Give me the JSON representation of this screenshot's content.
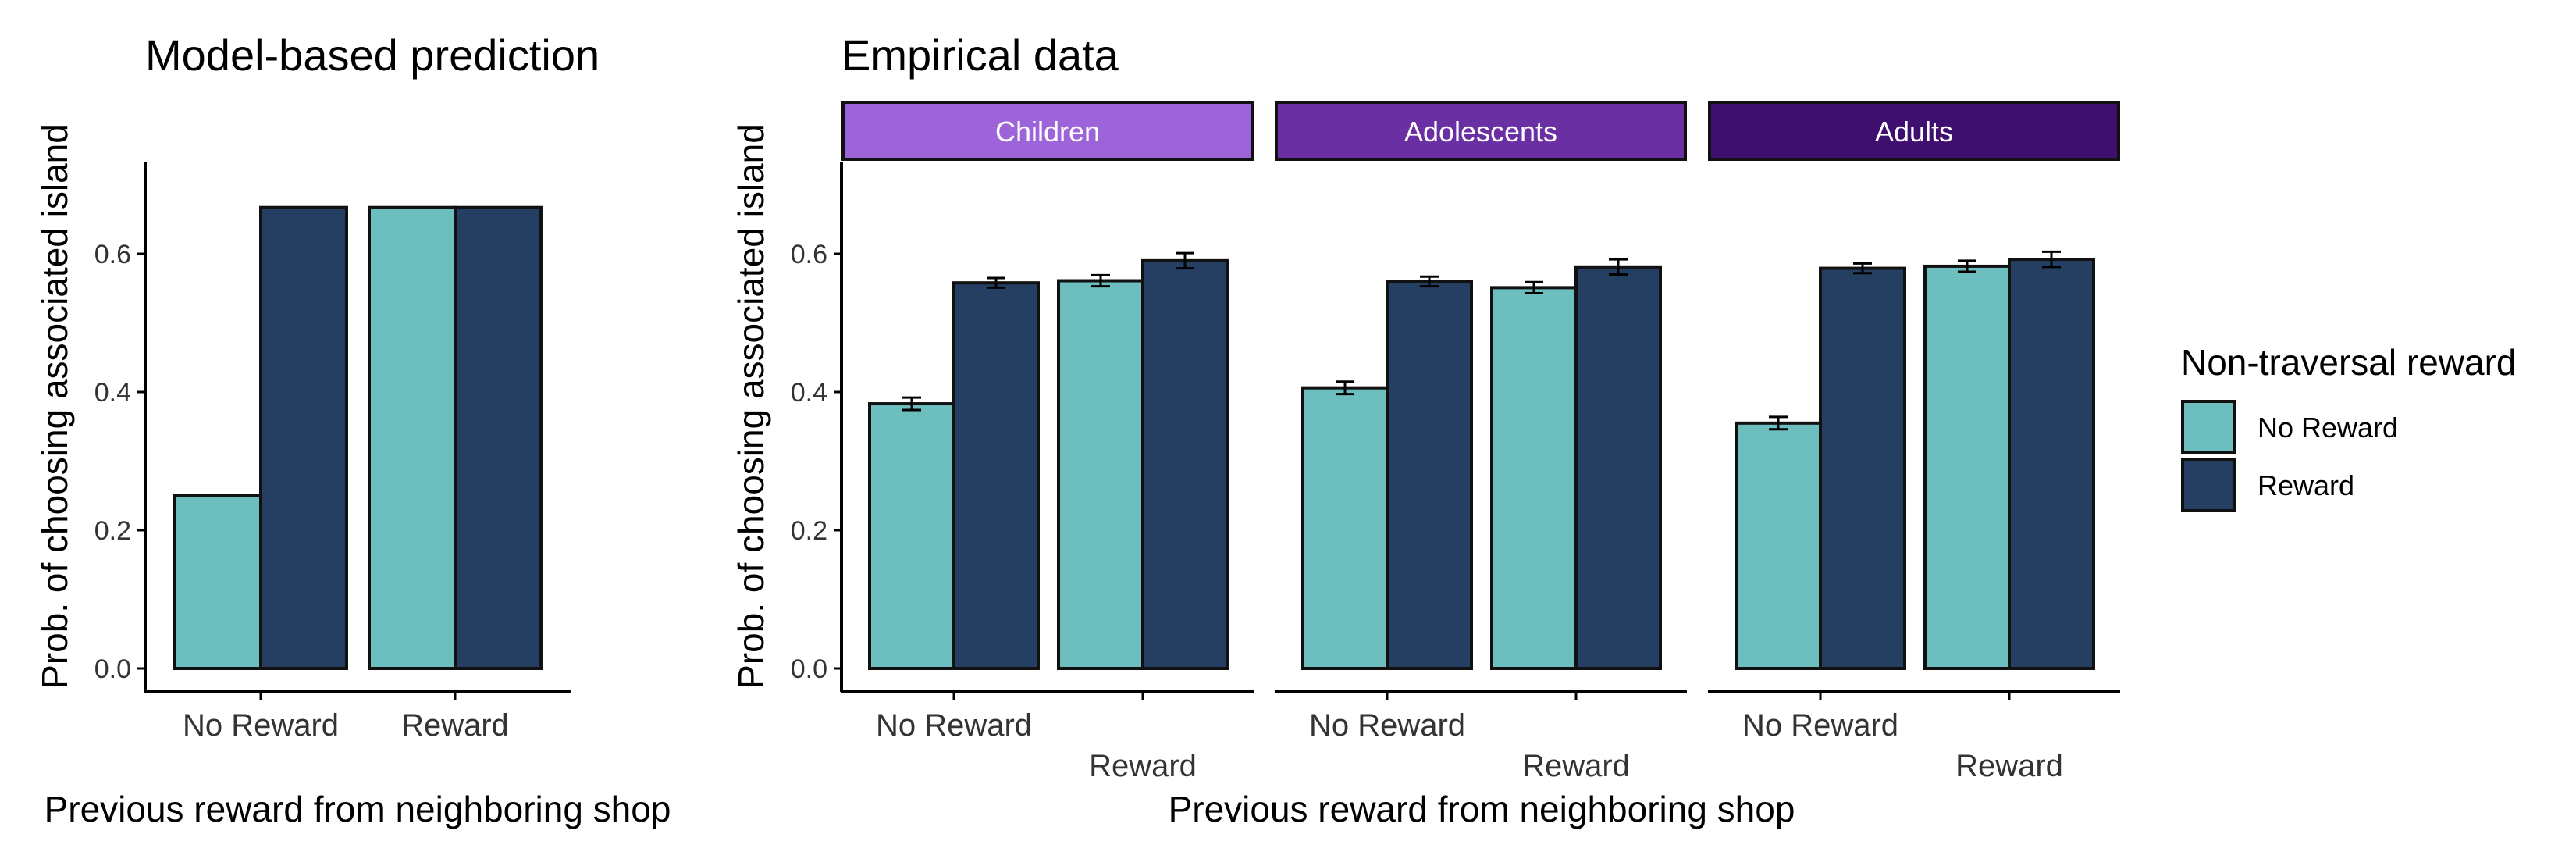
{
  "colors": {
    "no_reward": "#6dbfbf",
    "reward": "#253f63",
    "children": "#9d63d9",
    "adolescents": "#6a2fa2",
    "adults": "#3f0f6f",
    "bar_stroke": "#111111"
  },
  "legend": {
    "title": "Non-traversal reward",
    "items": [
      {
        "label": "No Reward",
        "color": "#6dbfbf"
      },
      {
        "label": "Reward",
        "color": "#253f63"
      }
    ]
  },
  "chart_data": [
    {
      "type": "bar",
      "title": "Model-based prediction",
      "xlabel": "Previous reward from neighboring shop",
      "ylabel": "Prob. of choosing associated island",
      "categories": [
        "No Reward",
        "Reward"
      ],
      "series": [
        {
          "name": "No Reward",
          "values": [
            0.25,
            0.667
          ]
        },
        {
          "name": "Reward",
          "values": [
            0.667,
            0.667
          ]
        }
      ],
      "ylim": [
        0,
        0.72
      ],
      "yticks": [
        "0.0",
        "0.2",
        "0.4",
        "0.6"
      ],
      "grid": false
    },
    {
      "type": "bar",
      "title": "Empirical data",
      "xlabel": "Previous reward from neighboring shop",
      "ylabel": "Prob. of choosing associated island",
      "categories": [
        "No Reward",
        "Reward"
      ],
      "yticks": [
        "0.0",
        "0.2",
        "0.4",
        "0.6"
      ],
      "ylim": [
        0,
        0.72
      ],
      "grid": false,
      "legend_position": "right",
      "facets": [
        {
          "label": "Children",
          "series": [
            {
              "name": "No Reward",
              "values": [
                0.383,
                0.561
              ],
              "errors": [
                0.009,
                0.008
              ]
            },
            {
              "name": "Reward",
              "values": [
                0.558,
                0.59
              ],
              "errors": [
                0.007,
                0.011
              ]
            }
          ]
        },
        {
          "label": "Adolescents",
          "series": [
            {
              "name": "No Reward",
              "values": [
                0.406,
                0.551
              ],
              "errors": [
                0.009,
                0.008
              ]
            },
            {
              "name": "Reward",
              "values": [
                0.56,
                0.581
              ],
              "errors": [
                0.007,
                0.011
              ]
            }
          ]
        },
        {
          "label": "Adults",
          "series": [
            {
              "name": "No Reward",
              "values": [
                0.355,
                0.582
              ],
              "errors": [
                0.009,
                0.008
              ]
            },
            {
              "name": "Reward",
              "values": [
                0.579,
                0.592
              ],
              "errors": [
                0.007,
                0.011
              ]
            }
          ]
        }
      ]
    }
  ]
}
